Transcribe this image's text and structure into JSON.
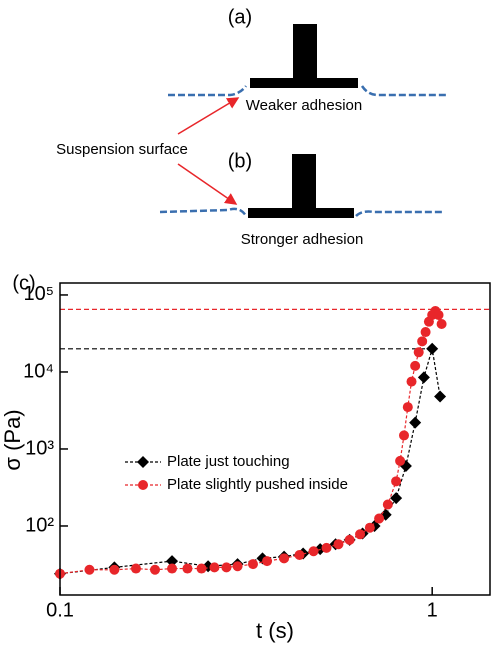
{
  "diagram": {
    "a_label": "(a)",
    "a_caption": "Weaker adhesion",
    "pointer_label": "Suspension surface",
    "b_label": "(b)",
    "b_caption": "Stronger adhesion",
    "c_label": "(c)"
  },
  "chart_data": {
    "type": "scatter",
    "x_label": "t (s)",
    "y_label": "σ (Pa)",
    "xlog": true,
    "ylog": true,
    "xlim": [
      0.1,
      1.43
    ],
    "ylim": [
      12.7,
      143000
    ],
    "xticks": [
      0.1,
      1
    ],
    "yticks": [
      {
        "value": 100,
        "label": "10²"
      },
      {
        "value": 1000,
        "label": "10³"
      },
      {
        "value": 10000,
        "label": "10⁴"
      },
      {
        "value": 100000,
        "label": "10⁵"
      }
    ],
    "legend": "left",
    "series": [
      {
        "name": "Plate just touching",
        "color": "#000000",
        "marker": "diamond",
        "x": [
          0.1,
          0.14,
          0.2,
          0.25,
          0.3,
          0.35,
          0.4,
          0.45,
          0.5,
          0.55,
          0.6,
          0.65,
          0.7,
          0.75,
          0.8,
          0.85,
          0.9,
          0.95,
          1.0,
          1.05
        ],
        "values": [
          24,
          29,
          35,
          30,
          32,
          38,
          40,
          44,
          50,
          58,
          66,
          80,
          100,
          140,
          230,
          600,
          2200,
          8500,
          20000,
          4800
        ]
      },
      {
        "name": "Plate slightly pushed inside",
        "color": "#e8262a",
        "marker": "circle",
        "x": [
          0.1,
          0.12,
          0.14,
          0.16,
          0.18,
          0.2,
          0.22,
          0.24,
          0.26,
          0.28,
          0.3,
          0.33,
          0.36,
          0.4,
          0.44,
          0.48,
          0.52,
          0.56,
          0.6,
          0.64,
          0.68,
          0.72,
          0.76,
          0.8,
          0.82,
          0.84,
          0.86,
          0.88,
          0.9,
          0.92,
          0.94,
          0.96,
          0.98,
          1.0,
          1.02,
          1.04,
          1.06
        ],
        "values": [
          24,
          27,
          27,
          28,
          27,
          28,
          28,
          28,
          29,
          29,
          30,
          32,
          35,
          38,
          42,
          47,
          52,
          58,
          66,
          78,
          95,
          125,
          190,
          380,
          700,
          1500,
          3500,
          7500,
          12000,
          18000,
          25000,
          33000,
          45000,
          55000,
          62000,
          55000,
          42000
        ]
      }
    ],
    "hlines": [
      {
        "value": 20000,
        "color": "#000000",
        "x_end": 1.0
      },
      {
        "value": 65000,
        "color": "#e8262a",
        "x_end": 1.43
      }
    ]
  }
}
